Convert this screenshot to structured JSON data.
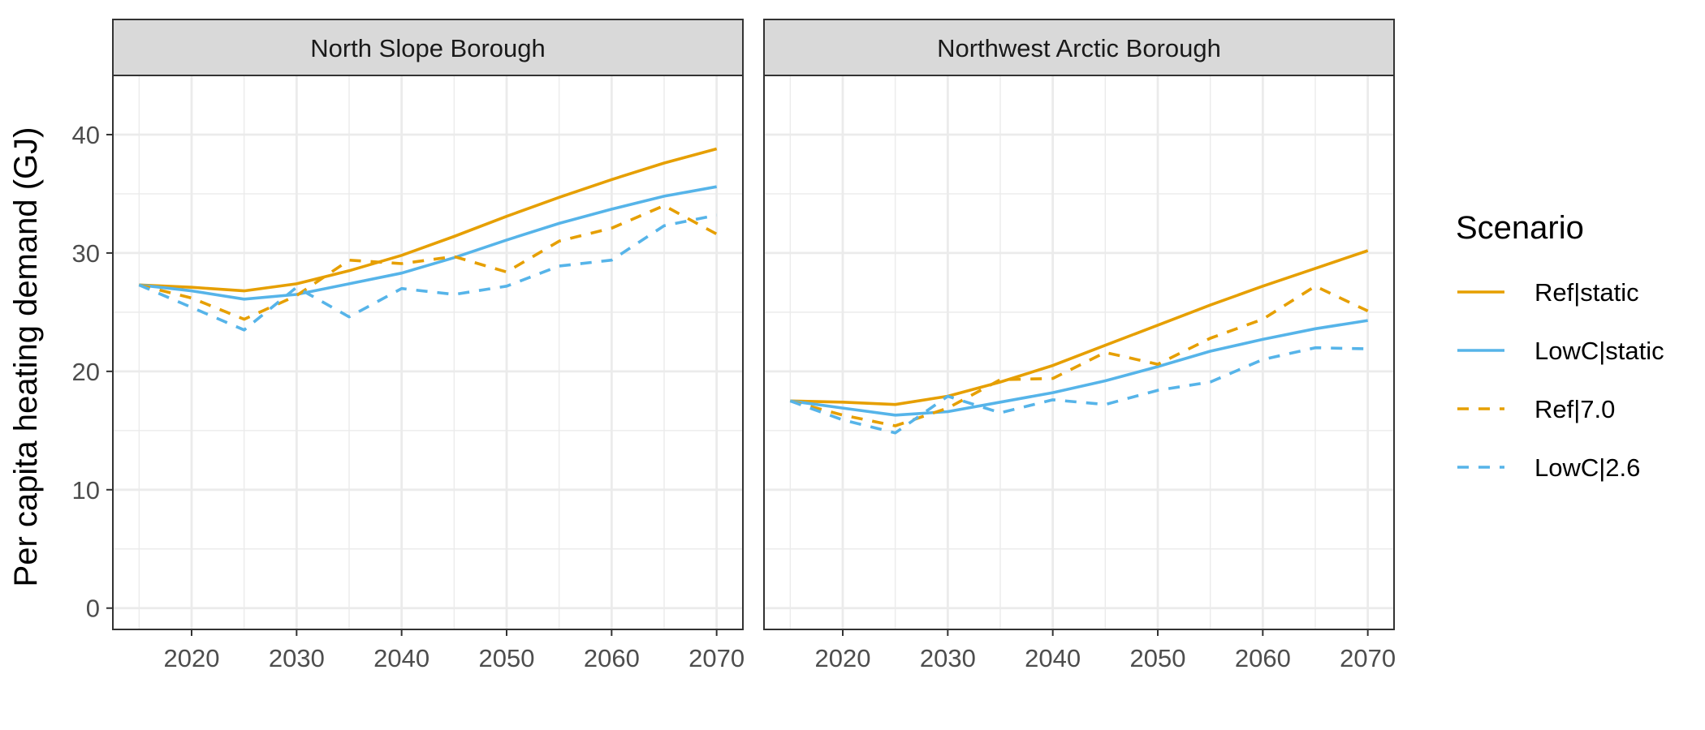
{
  "chart_data": {
    "type": "line",
    "ylabel": "Per capita heating demand (GJ)",
    "xlabel": "",
    "xlim": [
      2012.5,
      2072.5
    ],
    "ylim": [
      -1.8,
      45
    ],
    "x_ticks": [
      2020,
      2030,
      2040,
      2050,
      2060,
      2070
    ],
    "x_tick_labels": [
      "2020",
      "2030",
      "2040",
      "2050",
      "2060",
      "2070"
    ],
    "y_ticks": [
      0,
      10,
      20,
      30,
      40
    ],
    "y_tick_labels": [
      "0",
      "10",
      "20",
      "30",
      "40"
    ],
    "grid": true,
    "legend": {
      "title": "Scenario",
      "position": "right",
      "entries": [
        {
          "label": "Ref|static",
          "color": "#E69F00",
          "dash": "solid"
        },
        {
          "label": "LowC|static",
          "color": "#56B4E9",
          "dash": "solid"
        },
        {
          "label": "Ref|7.0",
          "color": "#E69F00",
          "dash": "dashed"
        },
        {
          "label": "LowC|2.6",
          "color": "#56B4E9",
          "dash": "dashed"
        }
      ]
    },
    "x": [
      2015,
      2020,
      2025,
      2030,
      2035,
      2040,
      2045,
      2050,
      2055,
      2060,
      2065,
      2070
    ],
    "panels": [
      {
        "title": "North Slope Borough",
        "series": [
          {
            "name": "Ref|static",
            "values": [
              27.3,
              27.1,
              26.8,
              27.4,
              28.5,
              29.8,
              31.4,
              33.1,
              34.7,
              36.2,
              37.6,
              38.8
            ]
          },
          {
            "name": "LowC|static",
            "values": [
              27.3,
              26.8,
              26.1,
              26.5,
              27.4,
              28.3,
              29.6,
              31.1,
              32.5,
              33.7,
              34.8,
              35.6
            ]
          },
          {
            "name": "Ref|7.0",
            "values": [
              27.3,
              26.2,
              24.4,
              26.4,
              29.4,
              29.1,
              29.7,
              28.4,
              31.0,
              32.1,
              34.0,
              31.6
            ]
          },
          {
            "name": "LowC|2.6",
            "values": [
              27.3,
              25.4,
              23.5,
              27.1,
              24.6,
              27.0,
              26.5,
              27.2,
              28.9,
              29.4,
              32.3,
              33.2
            ]
          }
        ]
      },
      {
        "title": "Northwest Arctic Borough",
        "series": [
          {
            "name": "Ref|static",
            "values": [
              17.5,
              17.4,
              17.2,
              17.9,
              19.1,
              20.5,
              22.2,
              23.9,
              25.6,
              27.2,
              28.7,
              30.2
            ]
          },
          {
            "name": "LowC|static",
            "values": [
              17.5,
              16.9,
              16.3,
              16.6,
              17.4,
              18.2,
              19.2,
              20.4,
              21.7,
              22.7,
              23.6,
              24.3
            ]
          },
          {
            "name": "Ref|7.0",
            "values": [
              17.5,
              16.3,
              15.4,
              16.9,
              19.3,
              19.4,
              21.6,
              20.6,
              22.8,
              24.4,
              27.2,
              25.1
            ]
          },
          {
            "name": "LowC|2.6",
            "values": [
              17.5,
              15.9,
              14.8,
              17.9,
              16.5,
              17.6,
              17.2,
              18.4,
              19.1,
              21.0,
              22.0,
              21.9
            ]
          }
        ]
      }
    ]
  }
}
